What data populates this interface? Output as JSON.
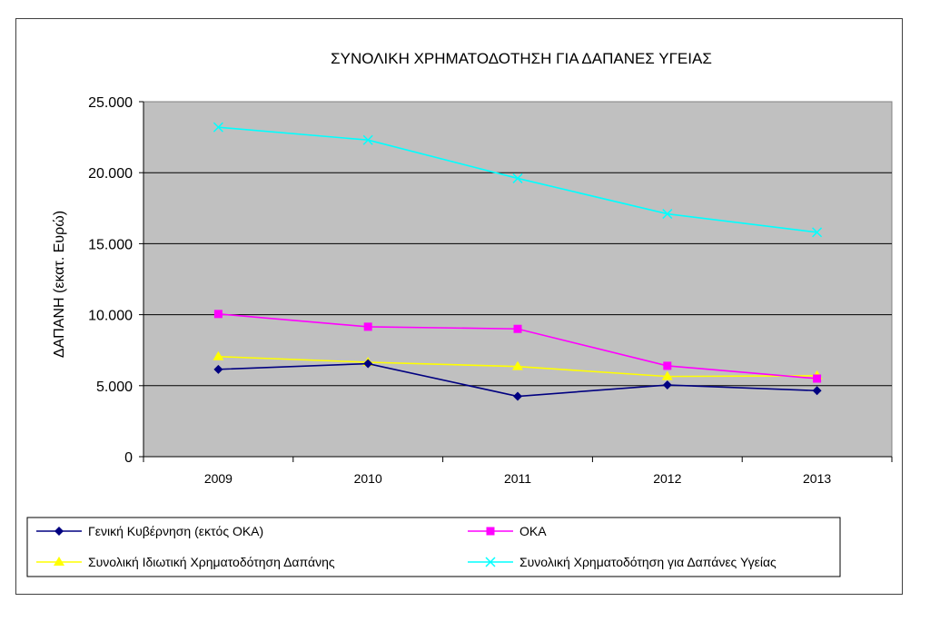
{
  "chart_data": {
    "type": "line",
    "title": "ΣΥΝΟΛΙΚΗ ΧΡΗΜΑΤΟΔΟΤΗΣΗ ΓΙΑ ΔΑΠΑΝΕΣ ΥΓΕΙΑΣ",
    "xlabel": "",
    "ylabel": "ΔΑΠΑΝΗ (εκατ. Ευρώ)",
    "categories": [
      "2009",
      "2010",
      "2011",
      "2012",
      "2013"
    ],
    "ylim": [
      0,
      25000
    ],
    "yticks": [
      0,
      5000,
      10000,
      15000,
      20000,
      25000
    ],
    "ytick_labels": [
      "0",
      "5.000",
      "10.000",
      "15.000",
      "20.000",
      "25.000"
    ],
    "grid": true,
    "plot_background": "#c0c0c0",
    "legend_position": "bottom",
    "series": [
      {
        "name": "Γενική Κυβέρνηση (εκτός ΟΚΑ)",
        "values": [
          6150,
          6550,
          4250,
          5050,
          4650
        ],
        "color": "#000080",
        "marker": "diamond"
      },
      {
        "name": "ΟΚΑ",
        "values": [
          10050,
          9150,
          9000,
          6400,
          5500
        ],
        "color": "#ff00ff",
        "marker": "square"
      },
      {
        "name": "Συνολική Ιδιωτική Χρηματοδότηση Δαπάνης",
        "values": [
          7050,
          6650,
          6350,
          5650,
          5700
        ],
        "color": "#ffff00",
        "marker": "triangle"
      },
      {
        "name": "Συνολική Χρηματοδότηση για Δαπάνες Υγείας",
        "values": [
          23200,
          22300,
          19600,
          17100,
          15800
        ],
        "color": "#00ffff",
        "marker": "x"
      }
    ]
  }
}
